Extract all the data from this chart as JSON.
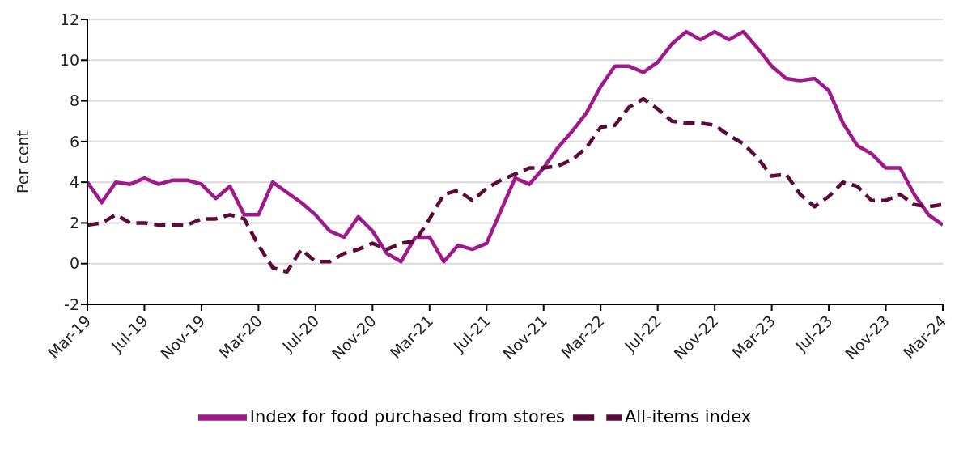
{
  "chart_data": {
    "type": "line",
    "ylabel": "Per cent",
    "ylim": [
      -2,
      12
    ],
    "yticks": [
      -2,
      0,
      2,
      4,
      6,
      8,
      10,
      12
    ],
    "grid": "y",
    "legend": "bottom",
    "marker": "none",
    "categories": [
      "Mar-19",
      null,
      null,
      null,
      "Jul-19",
      null,
      null,
      null,
      "Nov-19",
      null,
      null,
      null,
      "Mar-20",
      null,
      null,
      null,
      "Jul-20",
      null,
      null,
      null,
      "Nov-20",
      null,
      null,
      null,
      "Mar-21",
      null,
      null,
      null,
      "Jul-21",
      null,
      null,
      null,
      "Nov-21",
      null,
      null,
      null,
      "Mar-22",
      null,
      null,
      null,
      "Jul-22",
      null,
      null,
      null,
      "Nov-22",
      null,
      null,
      null,
      "Mar-23",
      null,
      null,
      null,
      "Jul-23",
      null,
      null,
      null,
      "Nov-23",
      null,
      null,
      null,
      "Mar-24"
    ],
    "series": [
      {
        "name": "Index for food purchased from stores",
        "color": "#a0198c",
        "line_style": "solid",
        "values": [
          4.0,
          3.0,
          4.0,
          3.9,
          4.2,
          3.9,
          4.1,
          4.1,
          3.9,
          3.2,
          3.8,
          2.4,
          2.4,
          4.0,
          3.5,
          3.0,
          2.4,
          1.6,
          1.3,
          2.3,
          1.6,
          0.5,
          0.1,
          1.3,
          1.3,
          0.1,
          0.9,
          0.7,
          1.0,
          2.6,
          4.2,
          3.9,
          4.7,
          5.7,
          6.5,
          7.4,
          8.7,
          9.7,
          9.7,
          9.4,
          9.9,
          10.8,
          11.4,
          11.0,
          11.4,
          11.0,
          11.4,
          10.6,
          9.7,
          9.1,
          9.0,
          9.1,
          8.5,
          6.9,
          5.8,
          5.4,
          4.7,
          4.7,
          3.4,
          2.4,
          1.9
        ]
      },
      {
        "name": "All-items index",
        "color": "#5c0a3a",
        "line_style": "dashed",
        "values": [
          1.9,
          2.0,
          2.4,
          2.0,
          2.0,
          1.9,
          1.9,
          1.9,
          2.2,
          2.2,
          2.4,
          2.2,
          0.9,
          -0.2,
          -0.4,
          0.7,
          0.1,
          0.1,
          0.5,
          0.7,
          1.0,
          0.7,
          1.0,
          1.1,
          2.2,
          3.4,
          3.6,
          3.1,
          3.7,
          4.1,
          4.4,
          4.7,
          4.7,
          4.8,
          5.1,
          5.7,
          6.7,
          6.8,
          7.7,
          8.1,
          7.6,
          7.0,
          6.9,
          6.9,
          6.8,
          6.3,
          5.9,
          5.2,
          4.3,
          4.4,
          3.4,
          2.8,
          3.3,
          4.0,
          3.8,
          3.1,
          3.1,
          3.4,
          2.9,
          2.8,
          2.9
        ]
      }
    ]
  }
}
